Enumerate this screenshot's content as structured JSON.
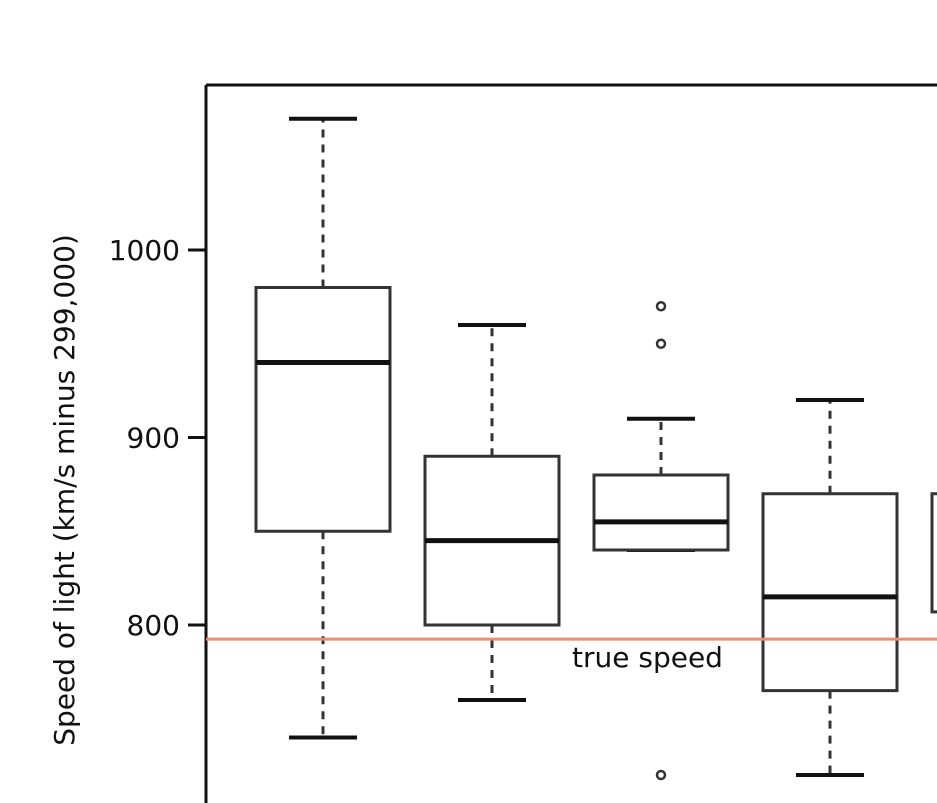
{
  "chart_data": {
    "type": "boxplot",
    "ylabel": "Speed of light (km/s minus 299,000)",
    "y_ticks": [
      {
        "value": 800,
        "label": "800"
      },
      {
        "value": 900,
        "label": "900"
      },
      {
        "value": 1000,
        "label": "1000"
      }
    ],
    "ylim_visible": [
      700,
      1090
    ],
    "series": [
      {
        "whisker_low": 740,
        "q1": 850,
        "median": 940,
        "q3": 980,
        "whisker_high": 1070,
        "outliers": []
      },
      {
        "whisker_low": 760,
        "q1": 800,
        "median": 845,
        "q3": 890,
        "whisker_high": 960,
        "outliers": []
      },
      {
        "whisker_low": 840,
        "q1": 840,
        "median": 855,
        "q3": 880,
        "whisker_high": 910,
        "outliers": [
          970,
          950,
          720
        ]
      },
      {
        "whisker_low": 720,
        "q1": 765,
        "median": 815,
        "q3": 870,
        "whisker_high": 920,
        "outliers": []
      },
      {
        "whisker_low": null,
        "q1": 807,
        "median": null,
        "q3": 870,
        "whisker_high": null,
        "outliers": []
      }
    ],
    "reference_line": {
      "value": 792.458,
      "label": "true speed",
      "color": "#f08a6c"
    },
    "grid": false
  }
}
